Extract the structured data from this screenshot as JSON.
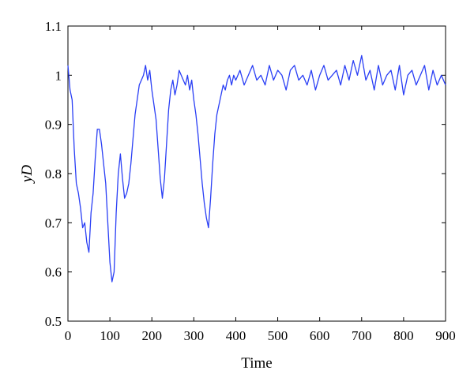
{
  "chart_data": {
    "type": "line",
    "title": "",
    "xlabel": "Time",
    "ylabel": "yD",
    "xlim": [
      0,
      900
    ],
    "ylim": [
      0.5,
      1.1
    ],
    "xticks": [
      "0",
      "100",
      "200",
      "300",
      "400",
      "500",
      "600",
      "700",
      "800",
      "900"
    ],
    "yticks": [
      "0.5",
      "0.6",
      "0.7",
      "0.8",
      "0.9",
      "1",
      "1.1"
    ],
    "grid": false,
    "legend": "none",
    "series": [
      {
        "color": "#2a3ff5",
        "x": [
          0,
          5,
          10,
          15,
          20,
          25,
          30,
          35,
          40,
          45,
          50,
          55,
          60,
          65,
          70,
          75,
          80,
          85,
          90,
          95,
          100,
          105,
          110,
          115,
          120,
          125,
          130,
          135,
          140,
          145,
          150,
          155,
          160,
          165,
          170,
          175,
          180,
          185,
          190,
          195,
          200,
          205,
          210,
          215,
          220,
          225,
          230,
          235,
          240,
          245,
          250,
          255,
          260,
          265,
          270,
          275,
          280,
          285,
          290,
          295,
          300,
          305,
          310,
          315,
          320,
          325,
          330,
          335,
          340,
          345,
          350,
          355,
          360,
          365,
          370,
          375,
          380,
          385,
          390,
          395,
          400,
          410,
          420,
          430,
          440,
          450,
          460,
          470,
          480,
          490,
          500,
          510,
          520,
          530,
          540,
          550,
          560,
          570,
          580,
          590,
          600,
          610,
          620,
          630,
          640,
          650,
          660,
          670,
          680,
          690,
          700,
          710,
          720,
          730,
          740,
          750,
          760,
          770,
          780,
          790,
          800,
          810,
          820,
          830,
          840,
          850,
          860,
          870,
          880,
          890,
          900
        ],
        "y": [
          1.02,
          0.97,
          0.95,
          0.85,
          0.78,
          0.76,
          0.73,
          0.69,
          0.7,
          0.66,
          0.64,
          0.72,
          0.76,
          0.83,
          0.89,
          0.89,
          0.86,
          0.82,
          0.78,
          0.7,
          0.62,
          0.58,
          0.6,
          0.72,
          0.8,
          0.84,
          0.79,
          0.75,
          0.76,
          0.78,
          0.82,
          0.87,
          0.92,
          0.95,
          0.98,
          0.99,
          1.0,
          1.02,
          0.99,
          1.01,
          0.97,
          0.94,
          0.91,
          0.85,
          0.79,
          0.75,
          0.79,
          0.86,
          0.93,
          0.97,
          0.99,
          0.96,
          0.98,
          1.01,
          1.0,
          0.99,
          0.98,
          1.0,
          0.97,
          0.99,
          0.95,
          0.92,
          0.88,
          0.83,
          0.78,
          0.74,
          0.71,
          0.69,
          0.75,
          0.82,
          0.88,
          0.92,
          0.94,
          0.96,
          0.98,
          0.97,
          0.99,
          1.0,
          0.98,
          1.0,
          0.99,
          1.01,
          0.98,
          1.0,
          1.02,
          0.99,
          1.0,
          0.98,
          1.02,
          0.99,
          1.01,
          1.0,
          0.97,
          1.01,
          1.02,
          0.99,
          1.0,
          0.98,
          1.01,
          0.97,
          1.0,
          1.02,
          0.99,
          1.0,
          1.01,
          0.98,
          1.02,
          0.99,
          1.03,
          1.0,
          1.04,
          0.99,
          1.01,
          0.97,
          1.02,
          0.98,
          1.0,
          1.01,
          0.97,
          1.02,
          0.96,
          1.0,
          1.01,
          0.98,
          1.0,
          1.02,
          0.97,
          1.01,
          0.98,
          1.0,
          0.98
        ]
      }
    ]
  }
}
